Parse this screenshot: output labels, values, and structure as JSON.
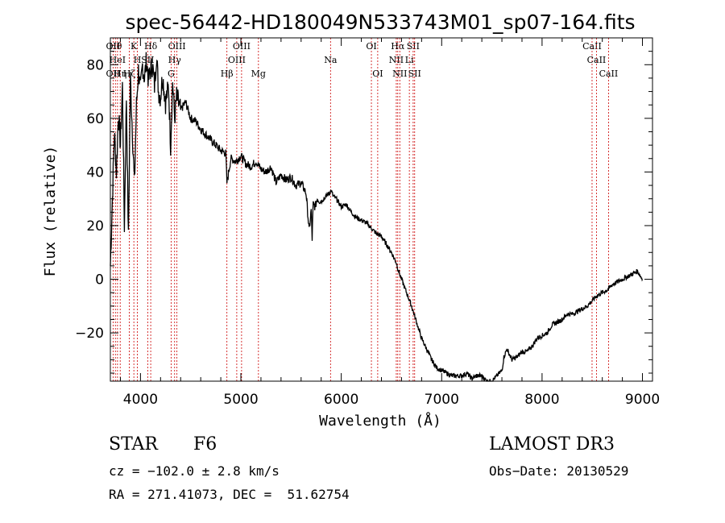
{
  "chart_data": {
    "type": "line",
    "title": "spec-56442-HD180049N533743M01_sp07-164.fits",
    "xlabel": "Wavelength (Å)",
    "ylabel": "Flux (relative)",
    "xlim": [
      3700,
      9100
    ],
    "ylim": [
      -38,
      90
    ],
    "xticks": [
      4000,
      5000,
      6000,
      7000,
      8000,
      9000
    ],
    "yticks": [
      -20,
      0,
      20,
      40,
      60,
      80
    ],
    "grid": false,
    "series": [
      {
        "name": "flux",
        "x": [
          3700,
          3720,
          3740,
          3760,
          3780,
          3800,
          3820,
          3840,
          3860,
          3880,
          3900,
          3920,
          3940,
          3960,
          3980,
          4000,
          4020,
          4040,
          4060,
          4080,
          4100,
          4120,
          4140,
          4160,
          4180,
          4200,
          4220,
          4250,
          4280,
          4300,
          4320,
          4340,
          4360,
          4400,
          4450,
          4500,
          4550,
          4600,
          4650,
          4700,
          4750,
          4800,
          4850,
          4861,
          4900,
          4950,
          5000,
          5050,
          5100,
          5150,
          5200,
          5250,
          5300,
          5350,
          5400,
          5450,
          5500,
          5550,
          5600,
          5650,
          5680,
          5700,
          5710,
          5720,
          5740,
          5760,
          5800,
          5850,
          5900,
          5920,
          5950,
          6000,
          6050,
          6100,
          6150,
          6200,
          6250,
          6300,
          6350,
          6400,
          6450,
          6500,
          6550,
          6563,
          6600,
          6650,
          6700,
          6750,
          6800,
          6850,
          6900,
          6950,
          7000,
          7050,
          7100,
          7150,
          7200,
          7250,
          7300,
          7350,
          7400,
          7450,
          7500,
          7550,
          7600,
          7620,
          7650,
          7700,
          7750,
          7800,
          7850,
          7900,
          7950,
          8000,
          8050,
          8100,
          8150,
          8200,
          8250,
          8300,
          8350,
          8400,
          8450,
          8500,
          8550,
          8600,
          8650,
          8700,
          8750,
          8800,
          8850,
          8900,
          8950,
          9000
        ],
        "values": [
          5,
          30,
          55,
          40,
          62,
          50,
          72,
          20,
          68,
          15,
          75,
          55,
          35,
          65,
          78,
          70,
          80,
          75,
          82,
          74,
          78,
          80,
          72,
          84,
          70,
          68,
          76,
          66,
          72,
          50,
          74,
          60,
          68,
          63,
          66,
          60,
          59,
          56,
          54,
          52,
          50,
          48,
          47,
          36,
          45,
          44,
          46,
          43,
          42,
          44,
          41,
          40,
          42,
          36,
          39,
          37,
          38,
          35,
          36,
          32,
          18,
          26,
          15,
          28,
          27,
          30,
          29,
          31,
          33,
          31,
          30,
          27,
          28,
          25,
          23,
          22,
          21,
          19,
          17,
          16,
          13,
          10,
          6,
          4,
          0,
          -5,
          -10,
          -16,
          -22,
          -26,
          -30,
          -33,
          -34,
          -35,
          -36,
          -36,
          -36,
          -35,
          -37,
          -36,
          -36,
          -38,
          -38,
          -36,
          -34,
          -29,
          -26,
          -30,
          -29,
          -27,
          -27,
          -25,
          -22,
          -21,
          -20,
          -17,
          -16,
          -15,
          -13,
          -13,
          -12,
          -11,
          -10,
          -8,
          -6,
          -5,
          -4,
          -2,
          -1,
          0,
          1,
          2,
          3,
          0
        ]
      }
    ],
    "lines": [
      {
        "x": 3727,
        "top": "OII",
        "mid": "",
        "low": "OII"
      },
      {
        "x": 3750,
        "top": "Hθ",
        "mid": "",
        "low": ""
      },
      {
        "x": 3771,
        "top": "",
        "mid": "HeI",
        "low": ""
      },
      {
        "x": 3798,
        "top": "",
        "mid": "",
        "low": "Hη"
      },
      {
        "x": 3889,
        "top": "",
        "mid": "",
        "low": "Hζ"
      },
      {
        "x": 3934,
        "top": "K",
        "mid": "",
        "low": ""
      },
      {
        "x": 3969,
        "top": "",
        "mid": "H",
        "low": ""
      },
      {
        "x": 4072,
        "top": "",
        "mid": "SII",
        "low": ""
      },
      {
        "x": 4102,
        "top": "Hδ",
        "mid": "",
        "low": ""
      },
      {
        "x": 4305,
        "top": "",
        "mid": "",
        "low": "G"
      },
      {
        "x": 4340,
        "top": "",
        "mid": "Hγ",
        "low": ""
      },
      {
        "x": 4363,
        "top": "OIII",
        "mid": "",
        "low": ""
      },
      {
        "x": 4861,
        "top": "",
        "mid": "",
        "low": "Hβ"
      },
      {
        "x": 4959,
        "top": "",
        "mid": "OIII",
        "low": ""
      },
      {
        "x": 5007,
        "top": "OIII",
        "mid": "",
        "low": ""
      },
      {
        "x": 5175,
        "top": "",
        "mid": "",
        "low": "Mg"
      },
      {
        "x": 5893,
        "top": "",
        "mid": "Na",
        "low": ""
      },
      {
        "x": 6300,
        "top": "OI",
        "mid": "",
        "low": ""
      },
      {
        "x": 6363,
        "top": "",
        "mid": "",
        "low": "OI"
      },
      {
        "x": 6548,
        "top": "",
        "mid": "NII",
        "low": ""
      },
      {
        "x": 6563,
        "top": "Hα",
        "mid": "",
        "low": ""
      },
      {
        "x": 6583,
        "top": "",
        "mid": "",
        "low": "NII"
      },
      {
        "x": 6678,
        "top": "",
        "mid": "Li",
        "low": ""
      },
      {
        "x": 6716,
        "top": "SII",
        "mid": "",
        "low": ""
      },
      {
        "x": 6731,
        "top": "",
        "mid": "",
        "low": "SII"
      },
      {
        "x": 8498,
        "top": "CaII",
        "mid": "",
        "low": ""
      },
      {
        "x": 8542,
        "top": "",
        "mid": "CaII",
        "low": ""
      },
      {
        "x": 8662,
        "top": "",
        "mid": "",
        "low": "CaII"
      }
    ]
  },
  "info": {
    "object_class": "STAR",
    "subclass": "F6",
    "survey": "LAMOST DR3",
    "velocity": "cz = −102.0 ± 2.8 km/s",
    "obs_date": "Obs−Date: 20130529",
    "coords": "RA = 271.41073, DEC =  51.62754"
  },
  "colors": {
    "spectrum": "#000000",
    "line_marker": "#cc0000"
  }
}
